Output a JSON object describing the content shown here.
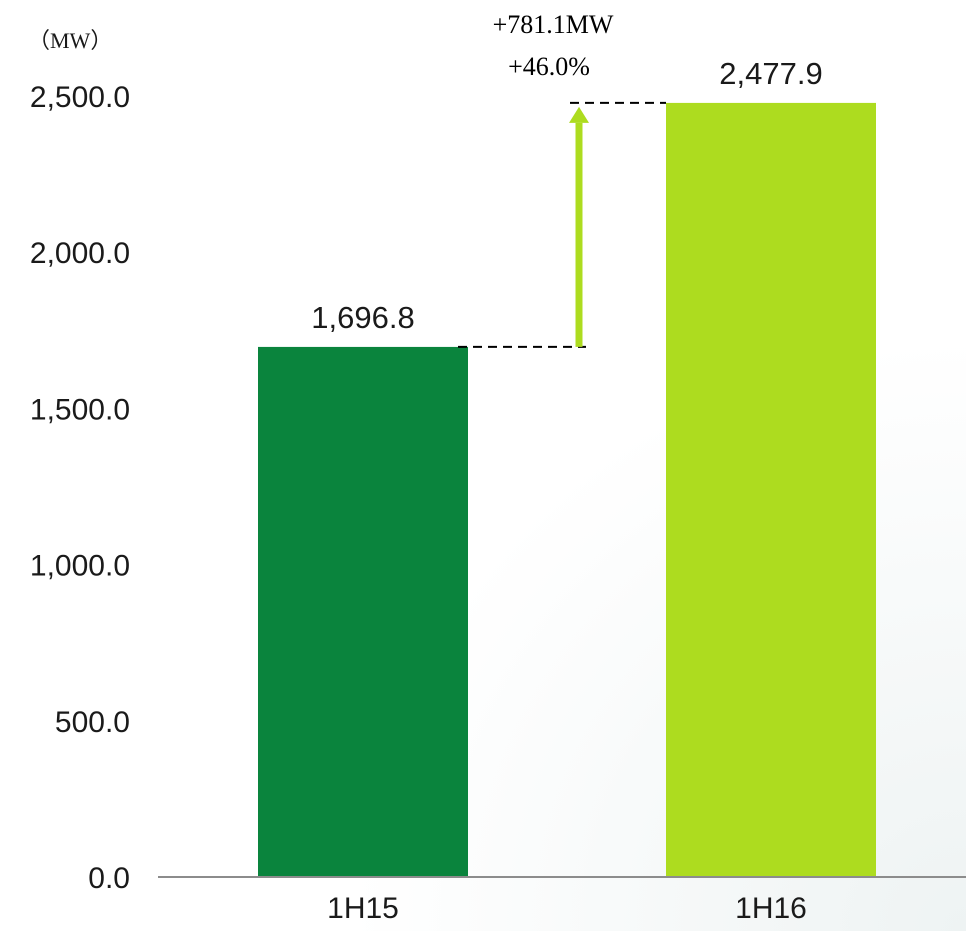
{
  "chart_data": {
    "type": "bar",
    "unit_label": "（MW）",
    "categories": [
      "1H15",
      "1H16"
    ],
    "values": [
      1696.8,
      2477.9
    ],
    "value_labels": [
      "1,696.8",
      "2,477.9"
    ],
    "bar_colors": [
      "#0a843d",
      "#addc1f"
    ],
    "ylim": [
      0,
      2500
    ],
    "yticks": [
      0,
      500,
      1000,
      1500,
      2000,
      2500
    ],
    "ytick_labels": [
      "0.0",
      "500.0",
      "1,000.0",
      "1,500.0",
      "2,000.0",
      "2,500.0"
    ],
    "grid": false,
    "annotation": {
      "line1": "+781.1MW",
      "line2": "+46.0%",
      "arrow_color": "#addc1f"
    }
  }
}
